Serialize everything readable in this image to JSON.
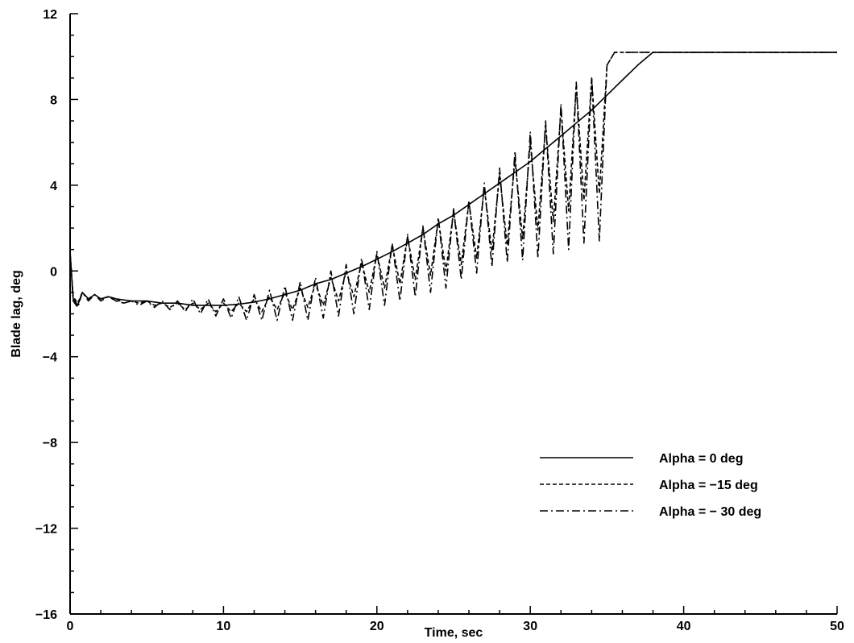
{
  "chart_data": {
    "type": "line",
    "title": "",
    "xlabel": "Time, sec",
    "ylabel": "Blade lag, deg",
    "xlim": [
      0,
      50
    ],
    "ylim": [
      -16,
      12
    ],
    "xticks": [
      0,
      10,
      20,
      30,
      40,
      50
    ],
    "yticks": [
      -16,
      -12,
      -8,
      -4,
      0,
      4,
      8,
      12
    ],
    "xtick_labels": [
      "0",
      "10",
      "20",
      "30",
      "40",
      "50"
    ],
    "ytick_labels": [
      "−16",
      "−12",
      "−8",
      "−4",
      "0",
      "4",
      "8",
      "12"
    ],
    "grid": false,
    "legend_position": "lower-right",
    "series": [
      {
        "name": "Alpha = 0 deg",
        "line_style": "solid",
        "color": "#000000",
        "x": [
          0,
          0.2,
          0.5,
          0.8,
          1.2,
          1.6,
          2.0,
          2.5,
          3.0,
          4.0,
          5.0,
          6.0,
          7.0,
          8.0,
          9.0,
          10.0,
          11.0,
          12.0,
          13.0,
          14.0,
          15.0,
          16.0,
          17.0,
          18.0,
          19.0,
          20.0,
          21.0,
          22.0,
          23.0,
          24.0,
          25.0,
          26.0,
          27.0,
          28.0,
          29.0,
          30.0,
          31.0,
          32.0,
          33.0,
          34.0,
          35.0,
          36.0,
          37.0,
          37.5,
          38.0,
          40.0,
          45.0,
          50.0
        ],
        "y": [
          0.9,
          -1.3,
          -1.6,
          -1.0,
          -1.3,
          -1.1,
          -1.3,
          -1.2,
          -1.3,
          -1.4,
          -1.4,
          -1.5,
          -1.5,
          -1.6,
          -1.6,
          -1.6,
          -1.55,
          -1.45,
          -1.3,
          -1.1,
          -0.9,
          -0.6,
          -0.4,
          -0.1,
          0.2,
          0.55,
          0.9,
          1.3,
          1.7,
          2.2,
          2.6,
          3.1,
          3.6,
          4.1,
          4.6,
          5.1,
          5.7,
          6.3,
          6.9,
          7.5,
          8.2,
          8.9,
          9.6,
          9.9,
          10.2,
          10.2,
          10.2,
          10.2
        ]
      },
      {
        "name": "Alpha = −15 deg",
        "line_style": "dashed",
        "color": "#000000",
        "x": [
          0,
          0.2,
          0.5,
          0.8,
          1.2,
          1.6,
          2.0,
          2.5,
          3.0,
          3.5,
          4.0,
          4.5,
          5.0,
          5.5,
          6.0,
          6.5,
          7.0,
          7.5,
          8.0,
          8.5,
          9.0,
          9.5,
          10.0,
          10.5,
          11.0,
          11.5,
          12.0,
          12.5,
          13.0,
          13.5,
          14.0,
          14.5,
          15.0,
          15.5,
          16.0,
          16.5,
          17.0,
          17.5,
          18.0,
          18.5,
          19.0,
          19.5,
          20.0,
          20.5,
          21.0,
          21.5,
          22.0,
          22.5,
          23.0,
          23.5,
          24.0,
          24.5,
          25.0,
          25.5,
          26.0,
          26.5,
          27.0,
          27.5,
          28.0,
          28.5,
          29.0,
          29.5,
          30.0,
          30.5,
          31.0,
          31.5,
          32.0,
          32.5,
          33.0,
          33.5,
          34.0,
          34.5,
          35.0,
          35.5,
          36.0,
          40.0,
          45.0,
          50.0
        ],
        "y": [
          0.8,
          -1.2,
          -1.5,
          -1.0,
          -1.3,
          -1.1,
          -1.3,
          -1.2,
          -1.3,
          -1.5,
          -1.4,
          -1.5,
          -1.4,
          -1.6,
          -1.5,
          -1.7,
          -1.5,
          -1.8,
          -1.5,
          -1.8,
          -1.5,
          -1.9,
          -1.5,
          -1.9,
          -1.5,
          -1.9,
          -1.3,
          -1.9,
          -1.2,
          -1.8,
          -1.0,
          -1.8,
          -0.8,
          -1.7,
          -0.6,
          -1.6,
          -0.3,
          -1.4,
          0.0,
          -1.2,
          0.4,
          -1.0,
          0.8,
          -0.8,
          1.2,
          -0.6,
          1.6,
          -0.4,
          2.0,
          -0.2,
          2.4,
          0.0,
          2.8,
          0.3,
          3.2,
          0.6,
          3.9,
          0.9,
          4.5,
          1.2,
          5.2,
          1.5,
          6.0,
          1.9,
          6.8,
          2.3,
          7.6,
          2.8,
          8.7,
          3.3,
          9.0,
          3.6,
          9.6,
          10.2,
          10.2,
          10.2,
          10.2,
          10.2
        ]
      },
      {
        "name": "Alpha = − 30 deg",
        "line_style": "dash-dot",
        "color": "#000000",
        "x": [
          0,
          0.2,
          0.5,
          0.8,
          1.2,
          1.6,
          2.0,
          2.5,
          3.0,
          3.5,
          4.0,
          4.5,
          5.0,
          5.5,
          6.0,
          6.5,
          7.0,
          7.5,
          8.0,
          8.5,
          9.0,
          9.5,
          10.0,
          10.5,
          11.0,
          11.5,
          12.0,
          12.5,
          13.0,
          13.5,
          14.0,
          14.5,
          15.0,
          15.5,
          16.0,
          16.5,
          17.0,
          17.5,
          18.0,
          18.5,
          19.0,
          19.5,
          20.0,
          20.5,
          21.0,
          21.5,
          22.0,
          22.5,
          23.0,
          23.5,
          24.0,
          24.5,
          25.0,
          25.5,
          26.0,
          26.5,
          27.0,
          27.5,
          28.0,
          28.5,
          29.0,
          29.5,
          30.0,
          30.5,
          31.0,
          31.5,
          32.0,
          32.5,
          33.0,
          33.5,
          34.0,
          34.5,
          35.0,
          35.5,
          36.0,
          40.0,
          45.0,
          50.0
        ],
        "y": [
          0.9,
          -1.4,
          -1.7,
          -1.0,
          -1.4,
          -1.1,
          -1.4,
          -1.2,
          -1.4,
          -1.5,
          -1.4,
          -1.6,
          -1.4,
          -1.7,
          -1.4,
          -1.8,
          -1.4,
          -1.9,
          -1.3,
          -2.0,
          -1.3,
          -2.1,
          -1.3,
          -2.2,
          -1.2,
          -2.3,
          -1.1,
          -2.3,
          -0.9,
          -2.3,
          -0.7,
          -2.3,
          -0.5,
          -2.3,
          -0.3,
          -2.2,
          0.0,
          -2.1,
          0.3,
          -2.0,
          0.6,
          -1.8,
          0.9,
          -1.6,
          1.3,
          -1.4,
          1.7,
          -1.2,
          2.1,
          -1.0,
          2.5,
          -0.8,
          2.9,
          -0.4,
          3.3,
          -0.1,
          4.1,
          0.2,
          4.8,
          0.4,
          5.6,
          0.5,
          6.5,
          0.6,
          7.0,
          0.8,
          7.8,
          1.0,
          8.8,
          1.3,
          9.0,
          1.4,
          9.6,
          10.2,
          10.2,
          10.2,
          10.2,
          10.2
        ]
      }
    ]
  }
}
